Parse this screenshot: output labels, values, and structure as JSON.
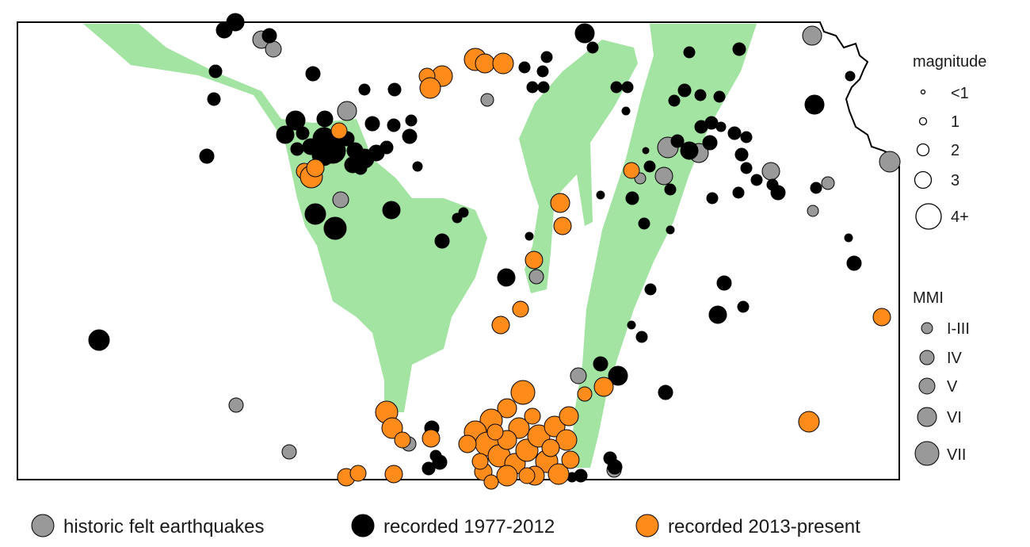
{
  "legend": {
    "magnitude": {
      "title": "magnitude",
      "items": [
        {
          "label": "<1"
        },
        {
          "label": "1"
        },
        {
          "label": "2"
        },
        {
          "label": "3"
        },
        {
          "label": "4+"
        }
      ]
    },
    "mmi": {
      "title": "MMI",
      "items": [
        {
          "label": "I-III"
        },
        {
          "label": "IV"
        },
        {
          "label": "V"
        },
        {
          "label": "VI"
        },
        {
          "label": "VII"
        }
      ]
    },
    "categories": [
      {
        "key": "historic",
        "label": "historic felt earthquakes",
        "color": "#999999"
      },
      {
        "key": "recorded_1977_2012",
        "label": "recorded 1977-2012",
        "color": "#000000"
      },
      {
        "key": "recorded_2013_present",
        "label": "recorded 2013-present",
        "color": "#ff8c1a"
      }
    ]
  },
  "colors": {
    "zone_fill": "#a3e4a3",
    "outline": "#000000",
    "historic": "#999999",
    "recorded_1977_2012": "#000000",
    "recorded_2013_present": "#ff8c1a"
  }
}
